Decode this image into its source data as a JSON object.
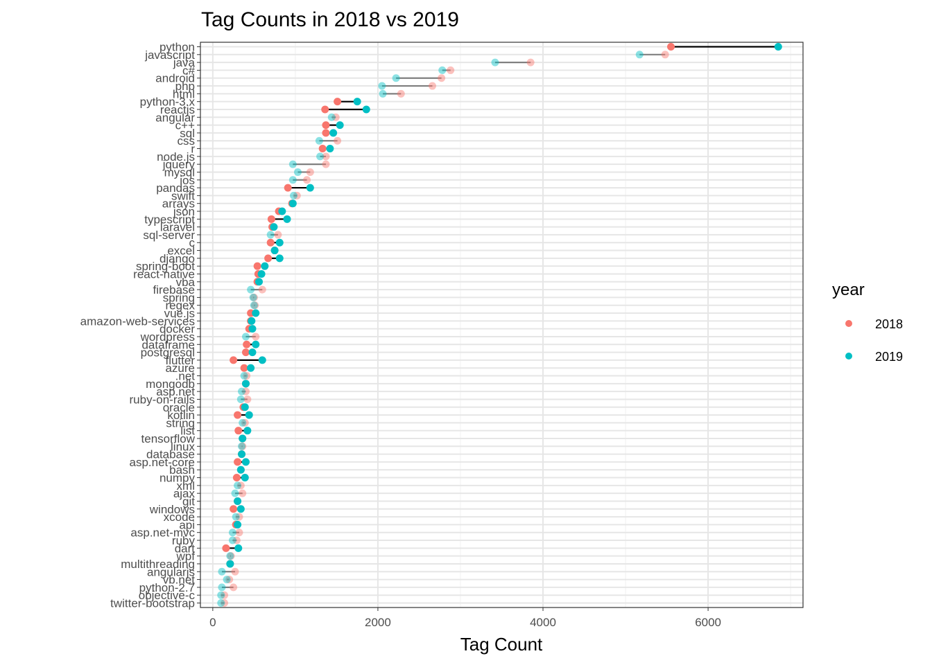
{
  "chart_data": {
    "type": "scatter",
    "title": "Tag Counts in 2018 vs 2019",
    "xlabel": "Tag Count",
    "ylabel": "",
    "xlim": [
      -150,
      7150
    ],
    "x_ticks": [
      0,
      2000,
      4000,
      6000
    ],
    "grid": true,
    "legend_position": "right",
    "legend_title": "year",
    "series": [
      {
        "name": "2018",
        "color": "#F8766D"
      },
      {
        "name": "2019",
        "color": "#00BFC4"
      }
    ],
    "categories": [
      "python",
      "javascript",
      "java",
      "c#",
      "android",
      "php",
      "html",
      "python-3.x",
      "reactjs",
      "angular",
      "c++",
      "sql",
      "css",
      "r",
      "node.js",
      "jquery",
      "mysql",
      "ios",
      "pandas",
      "swift",
      "arrays",
      "json",
      "typescript",
      "laravel",
      "sql-server",
      "c",
      "excel",
      "django",
      "spring-boot",
      "react-native",
      "vba",
      "firebase",
      "spring",
      "regex",
      "vue.js",
      "amazon-web-services",
      "docker",
      "wordpress",
      "dataframe",
      "postgresql",
      "flutter",
      "azure",
      ".net",
      "mongodb",
      "asp.net",
      "ruby-on-rails",
      "oracle",
      "kotlin",
      "string",
      "list",
      "tensorflow",
      "linux",
      "database",
      "asp.net-core",
      "bash",
      "numpy",
      "xml",
      "ajax",
      "git",
      "windows",
      "xcode",
      "api",
      "asp.net-mvc",
      "ruby",
      "dart",
      "wpf",
      "multithreading",
      "angularjs",
      "vb.net",
      "python-2.7",
      "objective-c",
      "twitter-bootstrap"
    ],
    "values_2018": [
      5550,
      5480,
      3850,
      2880,
      2770,
      2660,
      2280,
      1510,
      1360,
      1490,
      1370,
      1370,
      1510,
      1330,
      1370,
      1370,
      1180,
      1140,
      910,
      1020,
      960,
      800,
      710,
      720,
      790,
      700,
      750,
      670,
      540,
      550,
      540,
      600,
      500,
      510,
      460,
      460,
      440,
      520,
      410,
      400,
      250,
      380,
      410,
      400,
      400,
      420,
      370,
      300,
      390,
      310,
      360,
      360,
      350,
      300,
      340,
      290,
      340,
      360,
      300,
      250,
      320,
      280,
      320,
      290,
      160,
      220,
      210,
      270,
      200,
      250,
      140,
      140
    ],
    "values_2019": [
      6850,
      5170,
      3420,
      2780,
      2220,
      2050,
      2060,
      1750,
      1860,
      1440,
      1540,
      1460,
      1290,
      1420,
      1300,
      970,
      1030,
      970,
      1180,
      980,
      970,
      840,
      900,
      740,
      700,
      810,
      750,
      810,
      630,
      590,
      560,
      460,
      490,
      500,
      520,
      470,
      480,
      400,
      520,
      480,
      600,
      460,
      380,
      400,
      350,
      340,
      390,
      440,
      360,
      420,
      360,
      350,
      350,
      400,
      340,
      390,
      300,
      270,
      300,
      340,
      280,
      300,
      240,
      240,
      310,
      210,
      210,
      110,
      170,
      110,
      100,
      100
    ]
  }
}
